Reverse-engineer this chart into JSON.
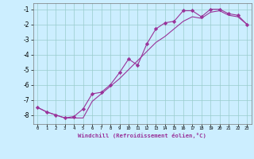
{
  "xlabel": "Windchill (Refroidissement éolien,°C)",
  "background_color": "#cceeff",
  "grid_color": "#99cccc",
  "line_color": "#993399",
  "x_ticks": [
    0,
    1,
    2,
    3,
    4,
    5,
    6,
    7,
    8,
    9,
    10,
    11,
    12,
    13,
    14,
    15,
    16,
    17,
    18,
    19,
    20,
    21,
    22,
    23
  ],
  "y_ticks": [
    -8,
    -7,
    -6,
    -5,
    -4,
    -3,
    -2,
    -1
  ],
  "xlim": [
    -0.5,
    23.5
  ],
  "ylim": [
    -8.6,
    -0.6
  ],
  "line1_x": [
    0,
    1,
    2,
    3,
    4,
    5,
    6,
    7,
    8,
    9,
    10,
    11,
    12,
    13,
    14,
    15,
    16,
    17,
    18,
    19,
    20,
    21,
    22,
    23
  ],
  "line1_y": [
    -7.5,
    -7.8,
    -8.0,
    -8.2,
    -8.1,
    -7.6,
    -6.6,
    -6.5,
    -6.0,
    -5.2,
    -4.3,
    -4.7,
    -3.3,
    -2.3,
    -1.9,
    -1.8,
    -1.1,
    -1.1,
    -1.5,
    -1.0,
    -1.0,
    -1.3,
    -1.4,
    -2.0
  ],
  "line2_x": [
    0,
    1,
    2,
    3,
    4,
    5,
    6,
    7,
    8,
    9,
    10,
    11,
    12,
    13,
    14,
    15,
    16,
    17,
    18,
    19,
    20,
    21,
    22,
    23
  ],
  "line2_y": [
    -7.5,
    -7.8,
    -8.0,
    -8.2,
    -8.2,
    -8.2,
    -7.1,
    -6.6,
    -6.1,
    -5.6,
    -5.0,
    -4.4,
    -3.8,
    -3.2,
    -2.8,
    -2.3,
    -1.8,
    -1.5,
    -1.6,
    -1.2,
    -1.1,
    -1.4,
    -1.5,
    -2.0
  ]
}
